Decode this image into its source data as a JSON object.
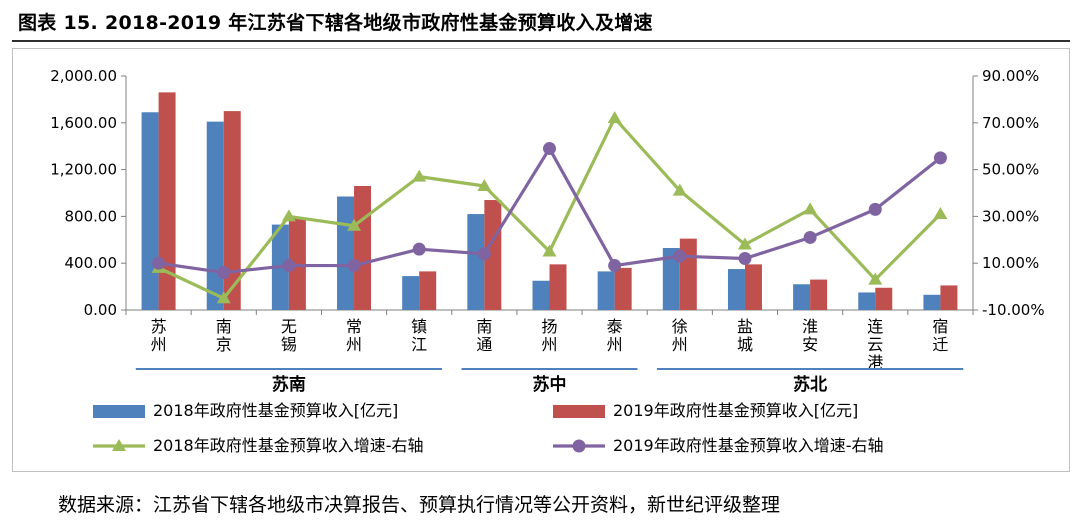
{
  "title": "图表 15. 2018-2019 年江苏省下辖各地级市政府性基金预算收入及增速",
  "source": "数据来源：江苏省下辖各地级市决算报告、预算执行情况等公开资料，新世纪评级整理",
  "chart_data": {
    "type": "bar",
    "categories": [
      [
        "苏",
        "州"
      ],
      [
        "南",
        "京"
      ],
      [
        "无",
        "锡"
      ],
      [
        "常",
        "州"
      ],
      [
        "镇",
        "江"
      ],
      [
        "南",
        "通"
      ],
      [
        "扬",
        "州"
      ],
      [
        "泰",
        "州"
      ],
      [
        "徐",
        "州"
      ],
      [
        "盐",
        "城"
      ],
      [
        "淮",
        "安"
      ],
      [
        "连",
        "云",
        "港"
      ],
      [
        "宿",
        "迁"
      ]
    ],
    "groups": [
      {
        "label": "苏南",
        "from": 0,
        "to": 4
      },
      {
        "label": "苏中",
        "from": 5,
        "to": 7
      },
      {
        "label": "苏北",
        "from": 8,
        "to": 12
      }
    ],
    "left_axis": {
      "min": 0,
      "max": 2000,
      "step": 400,
      "ticks": [
        "0.00",
        "400.00",
        "800.00",
        "1,200.00",
        "1,600.00",
        "2,000.00"
      ]
    },
    "right_axis": {
      "min": -10,
      "max": 90,
      "step": 20,
      "ticks": [
        "-10.00%",
        "10.00%",
        "30.00%",
        "50.00%",
        "70.00%",
        "90.00%"
      ]
    },
    "series": [
      {
        "name": "2018年政府性基金预算收入[亿元]",
        "kind": "bar",
        "axis": "left",
        "color": "#4f81bd",
        "values": [
          1690,
          1610,
          730,
          970,
          290,
          820,
          250,
          330,
          530,
          350,
          220,
          150,
          130
        ]
      },
      {
        "name": "2019年政府性基金预算收入[亿元]",
        "kind": "bar",
        "axis": "left",
        "color": "#c0504d",
        "values": [
          1860,
          1700,
          790,
          1060,
          330,
          940,
          390,
          360,
          610,
          390,
          260,
          190,
          210
        ]
      },
      {
        "name": "2018年政府性基金预算收入增速-右轴",
        "kind": "line",
        "axis": "right",
        "color": "#9bbb59",
        "marker": "triangle",
        "values": [
          8,
          -5,
          30,
          26,
          47,
          43,
          15,
          72,
          41,
          18,
          33,
          3,
          31
        ]
      },
      {
        "name": "2019年政府性基金预算收入增速-右轴",
        "kind": "line",
        "axis": "right",
        "color": "#8064a2",
        "marker": "circle",
        "values": [
          10,
          6,
          9,
          9,
          16,
          14,
          59,
          9,
          13,
          12,
          21,
          33,
          55
        ]
      }
    ],
    "legend_position": "bottom",
    "grid": false
  }
}
